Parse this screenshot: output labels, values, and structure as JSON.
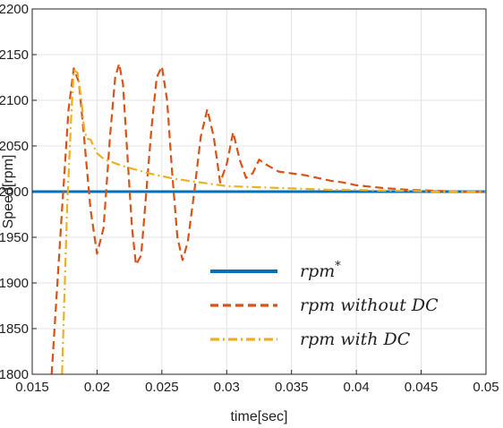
{
  "chart_data": {
    "type": "line",
    "title": "",
    "xlabel": "time[sec]",
    "ylabel": "Speed[rpm]",
    "xlim": [
      0.015,
      0.05
    ],
    "ylim": [
      1800,
      2200
    ],
    "grid": true,
    "x_ticks": [
      "0.015",
      "0.02",
      "0.025",
      "0.03",
      "0.035",
      "0.04",
      "0.045",
      "0.05"
    ],
    "y_ticks": [
      "1800",
      "1850",
      "1900",
      "1950",
      "2000",
      "2050",
      "2100",
      "2150",
      "2200"
    ],
    "legend_position": "bottom-right",
    "series": [
      {
        "name": "rpm*",
        "style": "solid",
        "color": "#0072BD",
        "x": [
          0.015,
          0.05
        ],
        "y": [
          2000,
          2000
        ]
      },
      {
        "name": "rpm without DC",
        "style": "dashed",
        "color": "#D95319",
        "x": [
          0.0165,
          0.0173,
          0.0178,
          0.0182,
          0.0186,
          0.019,
          0.0195,
          0.02,
          0.0205,
          0.021,
          0.0214,
          0.0217,
          0.022,
          0.0223,
          0.0227,
          0.023,
          0.0234,
          0.0238,
          0.0242,
          0.0246,
          0.025,
          0.0254,
          0.0258,
          0.0262,
          0.0266,
          0.027,
          0.0275,
          0.028,
          0.0285,
          0.029,
          0.0295,
          0.03,
          0.0305,
          0.031,
          0.0315,
          0.032,
          0.0325,
          0.033,
          0.034,
          0.035,
          0.036,
          0.037,
          0.038,
          0.039,
          0.04,
          0.042,
          0.044,
          0.046,
          0.048,
          0.05
        ],
        "y": [
          1800,
          1980,
          2090,
          2135,
          2120,
          2060,
          1980,
          1932,
          1960,
          2060,
          2125,
          2140,
          2118,
          2050,
          1960,
          1920,
          1930,
          2000,
          2070,
          2125,
          2137,
          2100,
          2020,
          1950,
          1925,
          1945,
          2000,
          2060,
          2090,
          2060,
          2010,
          2030,
          2065,
          2035,
          2015,
          2020,
          2035,
          2030,
          2022,
          2020,
          2018,
          2015,
          2012,
          2010,
          2007,
          2004,
          2002,
          2001,
          2000,
          2000
        ]
      },
      {
        "name": "rpm with DC",
        "style": "dash-dot",
        "color": "#EDB120",
        "x": [
          0.0173,
          0.0177,
          0.018,
          0.0182,
          0.0185,
          0.0188,
          0.019,
          0.0192,
          0.0195,
          0.02,
          0.0205,
          0.021,
          0.022,
          0.023,
          0.024,
          0.025,
          0.026,
          0.027,
          0.028,
          0.029,
          0.03,
          0.032,
          0.034,
          0.036,
          0.038,
          0.04,
          0.042,
          0.044,
          0.046,
          0.048,
          0.05
        ],
        "y": [
          1800,
          1985,
          2080,
          2133,
          2130,
          2100,
          2070,
          2058,
          2057,
          2042,
          2036,
          2033,
          2028,
          2024,
          2020,
          2017,
          2014,
          2012,
          2010,
          2008,
          2006,
          2005,
          2004,
          2003,
          2002,
          2002,
          2001,
          2001,
          2000,
          2000,
          2000
        ]
      }
    ]
  }
}
